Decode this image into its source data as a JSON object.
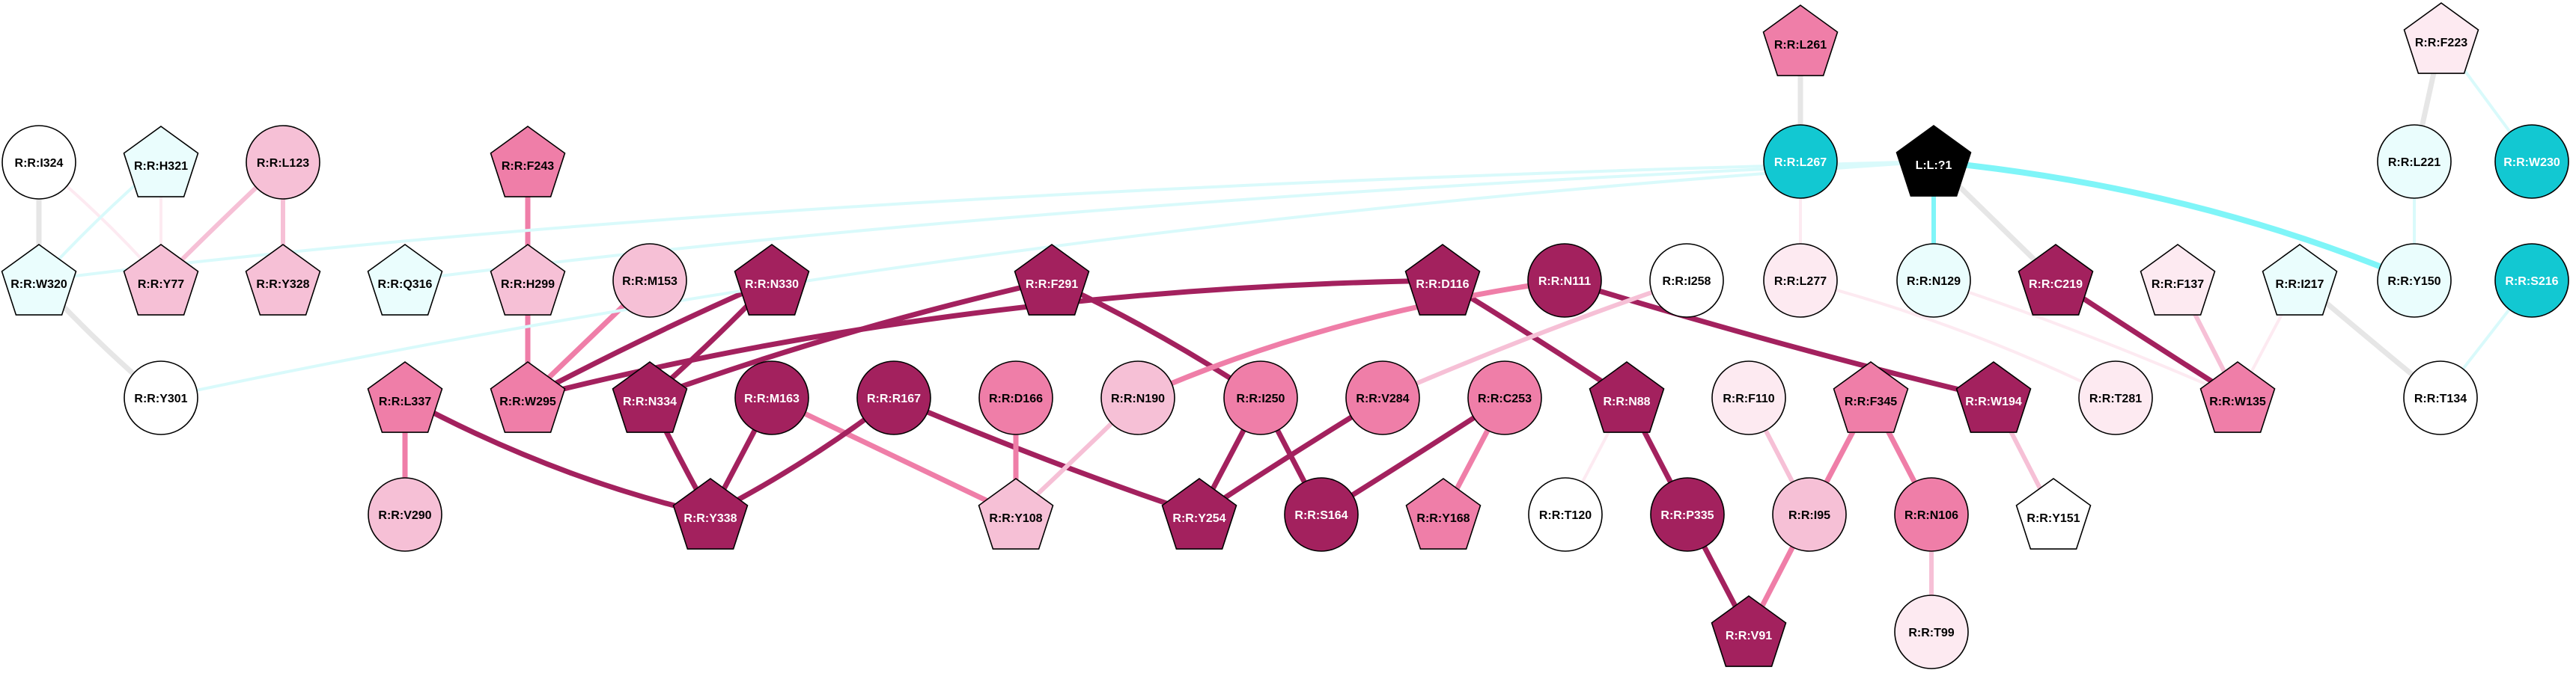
{
  "palette": {
    "ligand": "#000000",
    "dark": "#a3215e",
    "strong": "#ef7ea8",
    "medium": "#f6c0d6",
    "light": "#fdeaf1",
    "white": "#ffffff",
    "cyan": "#12c8d2",
    "cyan_pale": "#eafdfd",
    "gray": "#e6e6e6",
    "cyan_edge": "#7ff5f8",
    "cyan_edge_pale": "#d9fafb"
  },
  "nodes": [
    {
      "id": "L:L:?1",
      "shape": "pentagon",
      "fill": "ligand"
    },
    {
      "id": "R:R:L261",
      "shape": "pentagon",
      "fill": "strong"
    },
    {
      "id": "R:R:F223",
      "shape": "pentagon",
      "fill": "light"
    },
    {
      "id": "R:R:I324",
      "shape": "circle",
      "fill": "white"
    },
    {
      "id": "R:R:H321",
      "shape": "pentagon",
      "fill": "cyan_pale"
    },
    {
      "id": "R:R:L123",
      "shape": "circle",
      "fill": "medium"
    },
    {
      "id": "R:R:F243",
      "shape": "pentagon",
      "fill": "strong"
    },
    {
      "id": "R:R:L267",
      "shape": "circle",
      "fill": "cyan"
    },
    {
      "id": "R:R:L221",
      "shape": "circle",
      "fill": "cyan_pale"
    },
    {
      "id": "R:R:W230",
      "shape": "circle",
      "fill": "cyan"
    },
    {
      "id": "R:R:W320",
      "shape": "pentagon",
      "fill": "cyan_pale"
    },
    {
      "id": "R:R:Y77",
      "shape": "pentagon",
      "fill": "medium"
    },
    {
      "id": "R:R:Y328",
      "shape": "pentagon",
      "fill": "medium"
    },
    {
      "id": "R:R:Q316",
      "shape": "pentagon",
      "fill": "cyan_pale"
    },
    {
      "id": "R:R:H299",
      "shape": "pentagon",
      "fill": "medium"
    },
    {
      "id": "R:R:M153",
      "shape": "circle",
      "fill": "medium"
    },
    {
      "id": "R:R:N330",
      "shape": "pentagon",
      "fill": "dark"
    },
    {
      "id": "R:R:F291",
      "shape": "pentagon",
      "fill": "dark"
    },
    {
      "id": "R:R:D116",
      "shape": "pentagon",
      "fill": "dark"
    },
    {
      "id": "R:R:N111",
      "shape": "circle",
      "fill": "dark"
    },
    {
      "id": "R:R:I258",
      "shape": "circle",
      "fill": "white"
    },
    {
      "id": "R:R:L277",
      "shape": "circle",
      "fill": "light"
    },
    {
      "id": "R:R:N129",
      "shape": "circle",
      "fill": "cyan_pale"
    },
    {
      "id": "R:R:C219",
      "shape": "pentagon",
      "fill": "dark"
    },
    {
      "id": "R:R:F137",
      "shape": "pentagon",
      "fill": "light"
    },
    {
      "id": "R:R:I217",
      "shape": "pentagon",
      "fill": "cyan_pale"
    },
    {
      "id": "R:R:Y150",
      "shape": "circle",
      "fill": "cyan_pale"
    },
    {
      "id": "R:R:S216",
      "shape": "circle",
      "fill": "cyan"
    },
    {
      "id": "R:R:Y301",
      "shape": "circle",
      "fill": "white"
    },
    {
      "id": "R:R:L337",
      "shape": "pentagon",
      "fill": "strong"
    },
    {
      "id": "R:R:W295",
      "shape": "pentagon",
      "fill": "strong"
    },
    {
      "id": "R:R:N334",
      "shape": "pentagon",
      "fill": "dark"
    },
    {
      "id": "R:R:M163",
      "shape": "circle",
      "fill": "dark"
    },
    {
      "id": "R:R:R167",
      "shape": "circle",
      "fill": "dark"
    },
    {
      "id": "R:R:D166",
      "shape": "circle",
      "fill": "strong"
    },
    {
      "id": "R:R:N190",
      "shape": "circle",
      "fill": "medium"
    },
    {
      "id": "R:R:I250",
      "shape": "circle",
      "fill": "strong"
    },
    {
      "id": "R:R:V284",
      "shape": "circle",
      "fill": "strong"
    },
    {
      "id": "R:R:C253",
      "shape": "circle",
      "fill": "strong"
    },
    {
      "id": "R:R:N88",
      "shape": "pentagon",
      "fill": "dark"
    },
    {
      "id": "R:R:F110",
      "shape": "circle",
      "fill": "light"
    },
    {
      "id": "R:R:F345",
      "shape": "pentagon",
      "fill": "strong"
    },
    {
      "id": "R:R:W194",
      "shape": "pentagon",
      "fill": "dark"
    },
    {
      "id": "R:R:T281",
      "shape": "circle",
      "fill": "light"
    },
    {
      "id": "R:R:W135",
      "shape": "pentagon",
      "fill": "strong"
    },
    {
      "id": "R:R:T134",
      "shape": "circle",
      "fill": "white"
    },
    {
      "id": "R:R:V290",
      "shape": "circle",
      "fill": "medium"
    },
    {
      "id": "R:R:Y338",
      "shape": "pentagon",
      "fill": "dark"
    },
    {
      "id": "R:R:Y108",
      "shape": "pentagon",
      "fill": "medium"
    },
    {
      "id": "R:R:Y254",
      "shape": "pentagon",
      "fill": "dark"
    },
    {
      "id": "R:R:S164",
      "shape": "circle",
      "fill": "dark"
    },
    {
      "id": "R:R:Y168",
      "shape": "pentagon",
      "fill": "strong"
    },
    {
      "id": "R:R:T120",
      "shape": "circle",
      "fill": "white"
    },
    {
      "id": "R:R:P335",
      "shape": "circle",
      "fill": "dark"
    },
    {
      "id": "R:R:I95",
      "shape": "circle",
      "fill": "medium"
    },
    {
      "id": "R:R:N106",
      "shape": "circle",
      "fill": "strong"
    },
    {
      "id": "R:R:Y151",
      "shape": "pentagon",
      "fill": "white"
    },
    {
      "id": "R:R:V91",
      "shape": "pentagon",
      "fill": "dark"
    },
    {
      "id": "R:R:T99",
      "shape": "circle",
      "fill": "light"
    }
  ],
  "edges": [
    {
      "from": "R:R:L261",
      "to": "R:R:L267",
      "color": "gray",
      "weight": 7
    },
    {
      "from": "R:R:F223",
      "to": "R:R:L221",
      "color": "gray",
      "weight": 7
    },
    {
      "from": "R:R:F223",
      "to": "R:R:W230",
      "color": "cyan_edge_pale",
      "weight": 4
    },
    {
      "from": "R:R:I324",
      "to": "R:R:W320",
      "color": "gray",
      "weight": 7
    },
    {
      "from": "R:R:I324",
      "to": "R:R:Y77",
      "color": "light",
      "weight": 4
    },
    {
      "from": "R:R:H321",
      "to": "R:R:Y77",
      "color": "light",
      "weight": 4
    },
    {
      "from": "R:R:H321",
      "to": "R:R:W320",
      "color": "cyan_edge_pale",
      "weight": 4
    },
    {
      "from": "R:R:L123",
      "to": "R:R:Y77",
      "color": "medium",
      "weight": 6
    },
    {
      "from": "R:R:L123",
      "to": "R:R:Y328",
      "color": "medium",
      "weight": 6
    },
    {
      "from": "R:R:W320",
      "to": "R:R:Y301",
      "color": "gray",
      "weight": 7
    },
    {
      "from": "R:R:F243",
      "to": "R:R:H299",
      "color": "strong",
      "weight": 7
    },
    {
      "from": "R:R:H299",
      "to": "R:R:W295",
      "color": "strong",
      "weight": 7
    },
    {
      "from": "R:R:M153",
      "to": "R:R:W295",
      "color": "strong",
      "weight": 7
    },
    {
      "from": "R:R:N330",
      "to": "R:R:W295",
      "color": "dark",
      "weight": 7
    },
    {
      "from": "R:R:N330",
      "to": "R:R:N334",
      "color": "dark",
      "weight": 7
    },
    {
      "from": "R:R:F291",
      "to": "R:R:N334",
      "color": "dark",
      "weight": 7
    },
    {
      "from": "R:R:F291",
      "to": "R:R:I250",
      "color": "dark",
      "weight": 7
    },
    {
      "from": "R:R:D116",
      "to": "R:R:W295",
      "color": "dark",
      "weight": 7
    },
    {
      "from": "R:R:D116",
      "to": "R:R:N88",
      "color": "dark",
      "weight": 7
    },
    {
      "from": "R:R:N111",
      "to": "R:R:N190",
      "color": "strong",
      "weight": 7
    },
    {
      "from": "R:R:N111",
      "to": "R:R:W194",
      "color": "dark",
      "weight": 7
    },
    {
      "from": "R:R:I258",
      "to": "R:R:V284",
      "color": "medium",
      "weight": 6
    },
    {
      "from": "R:R:L277",
      "to": "R:R:T281",
      "color": "light",
      "weight": 4
    },
    {
      "from": "R:R:L267",
      "to": "R:R:L277",
      "color": "light",
      "weight": 4
    },
    {
      "from": "L:L:?1",
      "to": "R:R:N129",
      "color": "cyan_edge",
      "weight": 6
    },
    {
      "from": "L:L:?1",
      "to": "R:R:C219",
      "color": "gray",
      "weight": 7
    },
    {
      "from": "L:L:?1",
      "to": "R:R:Y150",
      "color": "cyan_edge",
      "weight": 8
    },
    {
      "from": "L:L:?1",
      "to": "R:R:Q316",
      "color": "cyan_edge_pale",
      "weight": 4
    },
    {
      "from": "L:L:?1",
      "to": "R:R:W320",
      "color": "cyan_edge_pale",
      "weight": 4
    },
    {
      "from": "L:L:?1",
      "to": "R:R:Y301",
      "color": "cyan_edge_pale",
      "weight": 4
    },
    {
      "from": "R:R:N129",
      "to": "R:R:W135",
      "color": "light",
      "weight": 4
    },
    {
      "from": "R:R:C219",
      "to": "R:R:W135",
      "color": "dark",
      "weight": 7
    },
    {
      "from": "R:R:F137",
      "to": "R:R:W135",
      "color": "medium",
      "weight": 6
    },
    {
      "from": "R:R:I217",
      "to": "R:R:W135",
      "color": "light",
      "weight": 4
    },
    {
      "from": "R:R:I217",
      "to": "R:R:T134",
      "color": "gray",
      "weight": 7
    },
    {
      "from": "R:R:L221",
      "to": "R:R:Y150",
      "color": "cyan_edge_pale",
      "weight": 4
    },
    {
      "from": "R:R:S216",
      "to": "R:R:T134",
      "color": "cyan_edge_pale",
      "weight": 4
    },
    {
      "from": "R:R:L337",
      "to": "R:R:V290",
      "color": "strong",
      "weight": 7
    },
    {
      "from": "R:R:L337",
      "to": "R:R:Y338",
      "color": "dark",
      "weight": 7
    },
    {
      "from": "R:R:N334",
      "to": "R:R:Y338",
      "color": "dark",
      "weight": 7
    },
    {
      "from": "R:R:M163",
      "to": "R:R:Y338",
      "color": "dark",
      "weight": 7
    },
    {
      "from": "R:R:M163",
      "to": "R:R:Y108",
      "color": "strong",
      "weight": 7
    },
    {
      "from": "R:R:R167",
      "to": "R:R:Y338",
      "color": "dark",
      "weight": 7
    },
    {
      "from": "R:R:R167",
      "to": "R:R:Y254",
      "color": "dark",
      "weight": 7
    },
    {
      "from": "R:R:D166",
      "to": "R:R:Y108",
      "color": "strong",
      "weight": 7
    },
    {
      "from": "R:R:N190",
      "to": "R:R:Y108",
      "color": "medium",
      "weight": 6
    },
    {
      "from": "R:R:I250",
      "to": "R:R:Y254",
      "color": "dark",
      "weight": 7
    },
    {
      "from": "R:R:I250",
      "to": "R:R:S164",
      "color": "dark",
      "weight": 7
    },
    {
      "from": "R:R:V284",
      "to": "R:R:Y254",
      "color": "dark",
      "weight": 7
    },
    {
      "from": "R:R:C253",
      "to": "R:R:S164",
      "color": "dark",
      "weight": 7
    },
    {
      "from": "R:R:C253",
      "to": "R:R:Y168",
      "color": "strong",
      "weight": 7
    },
    {
      "from": "R:R:N88",
      "to": "R:R:T120",
      "color": "light",
      "weight": 4
    },
    {
      "from": "R:R:N88",
      "to": "R:R:P335",
      "color": "dark",
      "weight": 7
    },
    {
      "from": "R:R:P335",
      "to": "R:R:V91",
      "color": "dark",
      "weight": 7
    },
    {
      "from": "R:R:F110",
      "to": "R:R:I95",
      "color": "medium",
      "weight": 6
    },
    {
      "from": "R:R:F345",
      "to": "R:R:I95",
      "color": "strong",
      "weight": 7
    },
    {
      "from": "R:R:F345",
      "to": "R:R:N106",
      "color": "strong",
      "weight": 7
    },
    {
      "from": "R:R:I95",
      "to": "R:R:V91",
      "color": "strong",
      "weight": 7
    },
    {
      "from": "R:R:N106",
      "to": "R:R:T99",
      "color": "medium",
      "weight": 6
    },
    {
      "from": "R:R:W194",
      "to": "R:R:Y151",
      "color": "medium",
      "weight": 6
    }
  ]
}
